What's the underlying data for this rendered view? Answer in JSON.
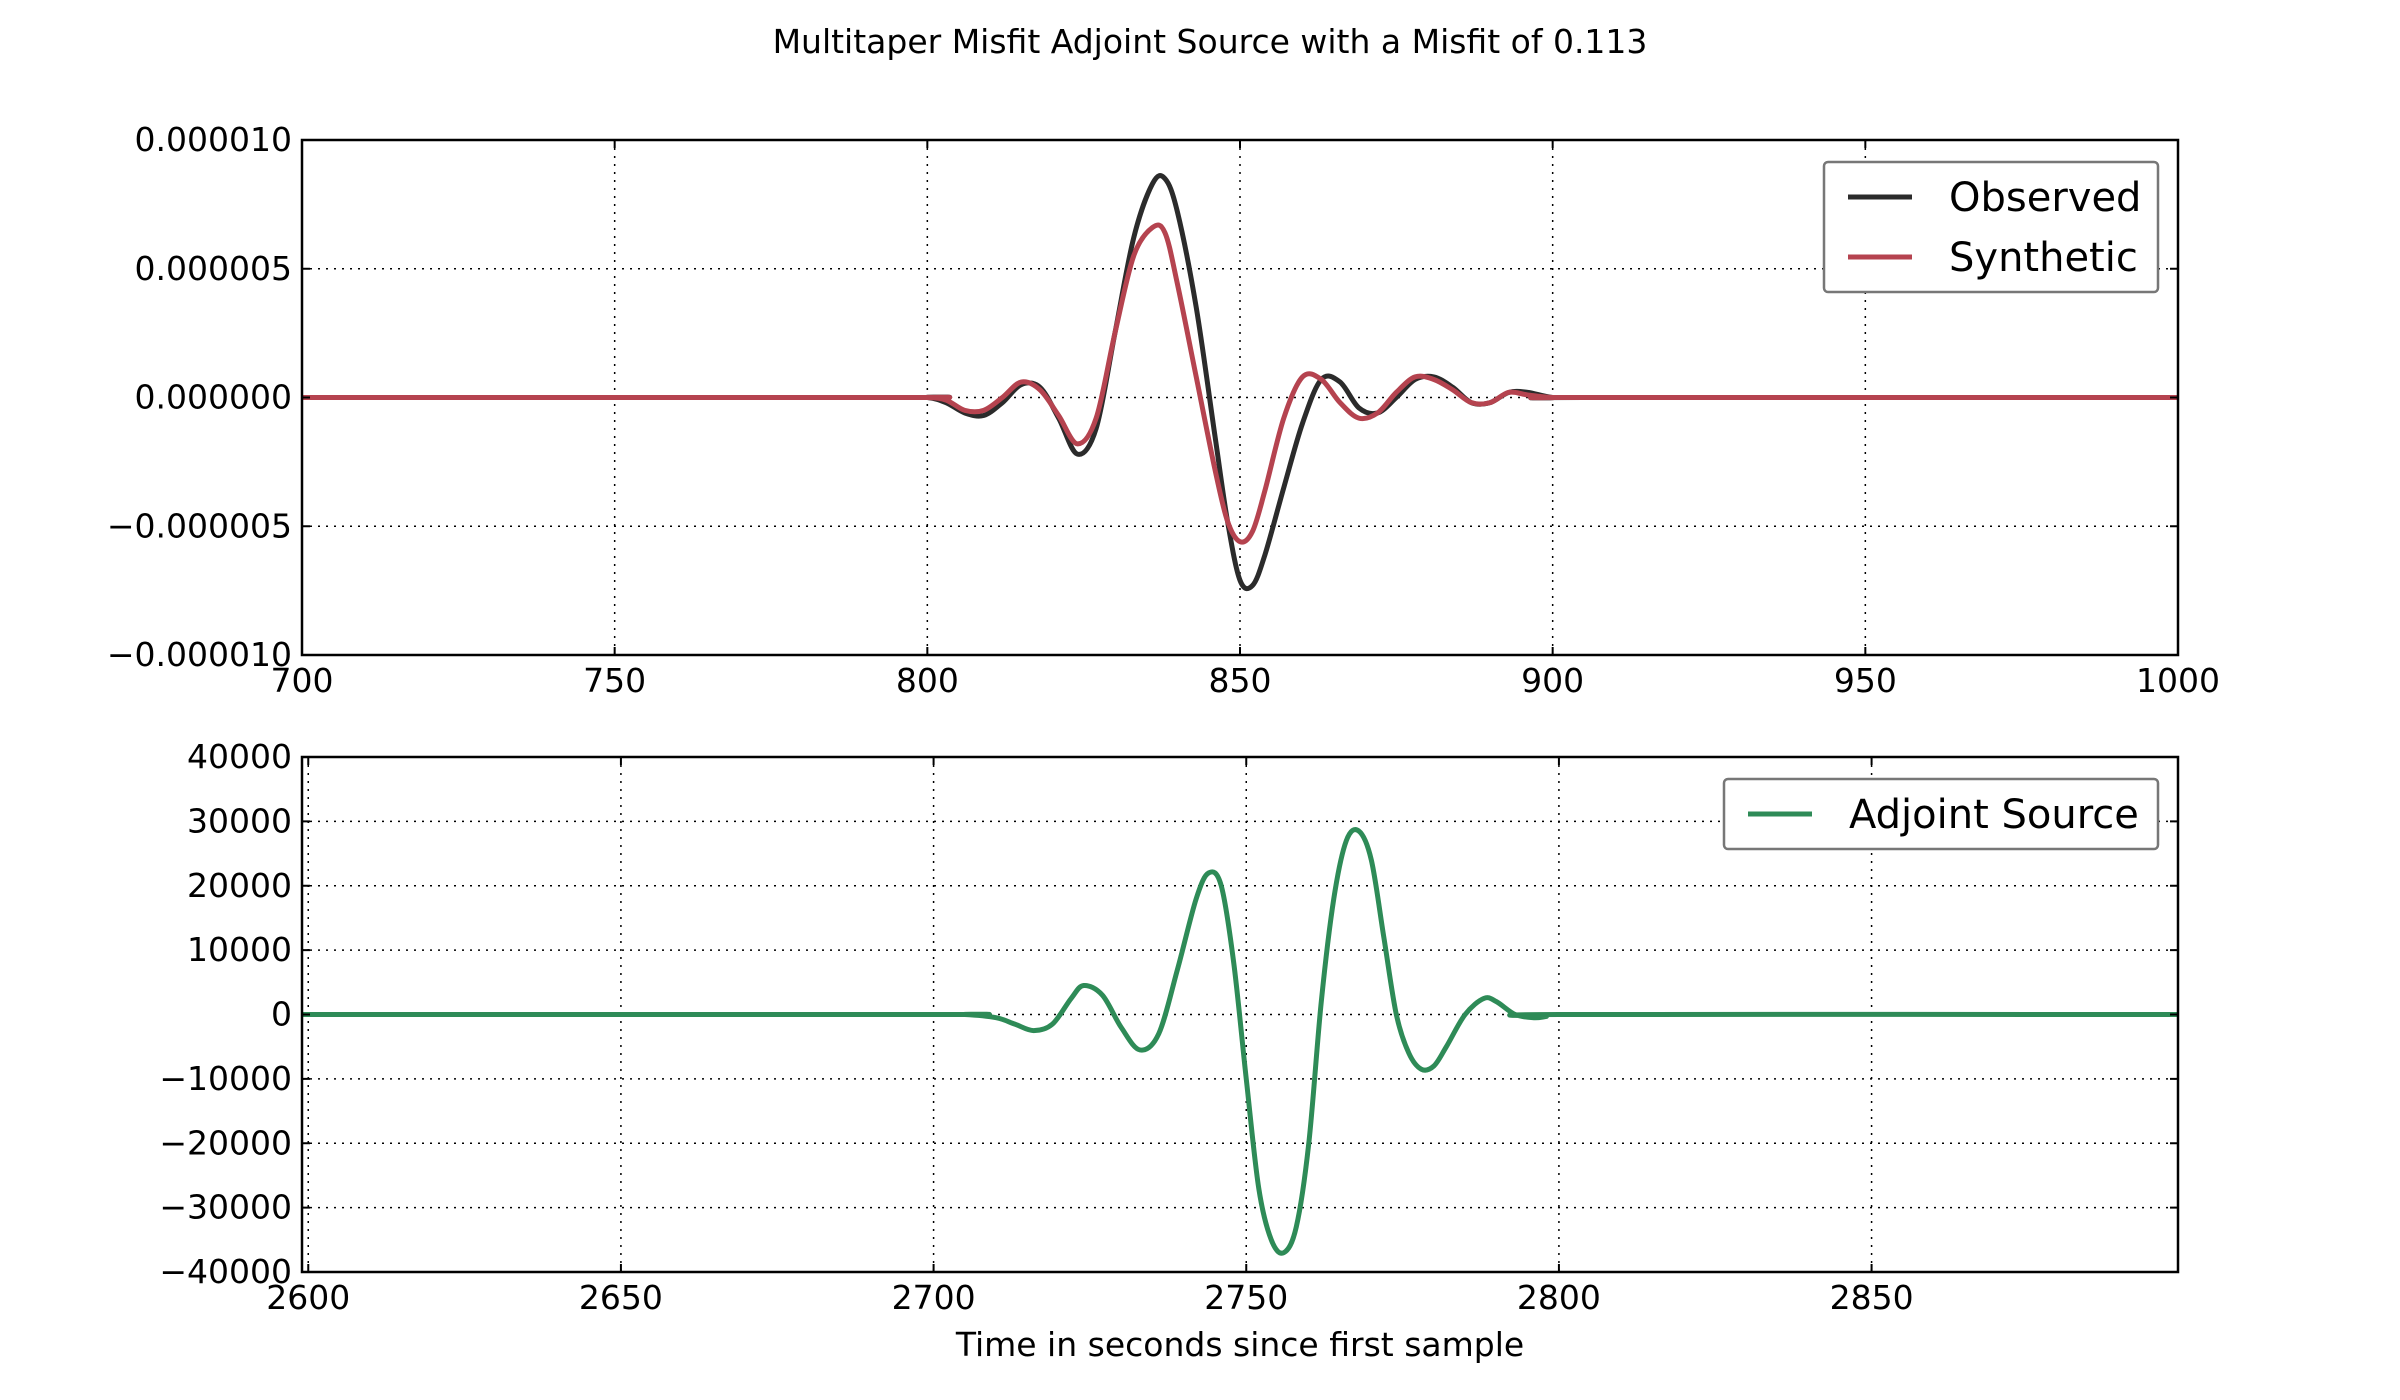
{
  "figure": {
    "title": "Multitaper Misfit Adjoint Source with a Misfit of 0.113"
  },
  "chart_data": [
    {
      "type": "line",
      "xlim": [
        700,
        1000
      ],
      "ylim": [
        -1e-05,
        1e-05
      ],
      "xticks": [
        700,
        750,
        800,
        850,
        900,
        950,
        1000
      ],
      "xtick_labels": [
        "700",
        "750",
        "800",
        "850",
        "900",
        "950",
        "1000"
      ],
      "yticks": [
        -1e-05,
        -5e-06,
        0,
        5e-06,
        1e-05
      ],
      "ytick_labels": [
        "−0.000010",
        "−0.000005",
        "0.000000",
        "0.000005",
        "0.000010"
      ],
      "xlabel": "",
      "ylabel": "",
      "grid": true,
      "legend_position": "top-right",
      "series": [
        {
          "name": "Observed",
          "color": "#2b2b2b",
          "x": [
            700,
            795,
            800,
            803,
            806,
            809,
            812,
            815,
            818,
            821,
            824,
            827,
            830,
            833,
            836,
            838,
            840,
            843,
            846,
            848,
            850,
            852,
            854,
            857,
            860,
            863,
            866,
            869,
            872,
            875,
            878,
            881,
            884,
            887,
            890,
            893,
            896,
            900,
            905,
            1000
          ],
          "y": [
            0,
            0,
            0,
            -2e-07,
            -6e-07,
            -7e-07,
            -2e-07,
            5e-07,
            4e-07,
            -8e-07,
            -2.2e-06,
            -1.2e-06,
            2.5e-06,
            6.2e-06,
            8.3e-06,
            8.5e-06,
            7.2e-06,
            3.5e-06,
            -1.5e-06,
            -4.8e-06,
            -7.1e-06,
            -7.3e-06,
            -6.1e-06,
            -3.5e-06,
            -1e-06,
            7e-07,
            6e-07,
            -4e-07,
            -6e-07,
            0,
            7e-07,
            8e-07,
            4e-07,
            -2e-07,
            -2e-07,
            2e-07,
            2e-07,
            0,
            0,
            0
          ]
        },
        {
          "name": "Synthetic",
          "color": "#b5434f",
          "x": [
            700,
            795,
            800,
            803,
            806,
            809,
            812,
            815,
            818,
            821,
            824,
            827,
            830,
            833,
            836,
            838,
            840,
            843,
            846,
            848,
            850,
            852,
            854,
            857,
            860,
            863,
            866,
            869,
            872,
            875,
            878,
            881,
            884,
            887,
            890,
            893,
            896,
            900,
            905,
            1000
          ],
          "y": [
            0,
            0,
            0,
            -1e-07,
            -5e-07,
            -5e-07,
            0,
            6e-07,
            3e-07,
            -7e-07,
            -1.8e-06,
            -8e-07,
            2.5e-06,
            5.5e-06,
            6.6e-06,
            6.4e-06,
            4.4e-06,
            8e-07,
            -2.8e-06,
            -4.8e-06,
            -5.6e-06,
            -5.2e-06,
            -3.6e-06,
            -8e-07,
            8e-07,
            7e-07,
            -2e-07,
            -8e-07,
            -6e-07,
            2e-07,
            8e-07,
            7e-07,
            3e-07,
            -2e-07,
            -2e-07,
            2e-07,
            1e-07,
            0,
            0,
            0
          ]
        }
      ]
    },
    {
      "type": "line",
      "xlim": [
        2599,
        2899
      ],
      "ylim": [
        -40000,
        40000
      ],
      "xticks": [
        2600,
        2650,
        2700,
        2750,
        2800,
        2850
      ],
      "xtick_labels": [
        "2600",
        "2650",
        "2700",
        "2750",
        "2800",
        "2850"
      ],
      "yticks": [
        -40000,
        -30000,
        -20000,
        -10000,
        0,
        10000,
        20000,
        30000,
        40000
      ],
      "ytick_labels": [
        "−40000",
        "−30000",
        "−20000",
        "−10000",
        "0",
        "10000",
        "20000",
        "30000",
        "40000"
      ],
      "xlabel": "Time in seconds since first sample",
      "ylabel": "",
      "grid": true,
      "legend_position": "top-right",
      "series": [
        {
          "name": "Adjoint Source",
          "color": "#2e8b57",
          "x": [
            2599,
            2700,
            2705,
            2710,
            2713,
            2716,
            2719,
            2722,
            2724,
            2727,
            2730,
            2733,
            2736,
            2739,
            2742,
            2744,
            2746,
            2748,
            2750,
            2752,
            2754,
            2756,
            2758,
            2760,
            2762,
            2764,
            2766,
            2768,
            2770,
            2772,
            2774,
            2776,
            2778,
            2780,
            2782,
            2785,
            2788,
            2790,
            2793,
            2796,
            2798,
            2800,
            2899
          ],
          "y": [
            0,
            0,
            0,
            -500,
            -1500,
            -2500,
            -1500,
            2500,
            4500,
            3000,
            -2000,
            -5500,
            -3000,
            7000,
            18000,
            22000,
            20000,
            8000,
            -10000,
            -27000,
            -35000,
            -37000,
            -33000,
            -20000,
            2000,
            18000,
            27000,
            28500,
            24000,
            12000,
            0,
            -6000,
            -8500,
            -8000,
            -5000,
            0,
            2500,
            2000,
            0,
            -500,
            -300,
            0,
            0
          ]
        }
      ]
    }
  ]
}
